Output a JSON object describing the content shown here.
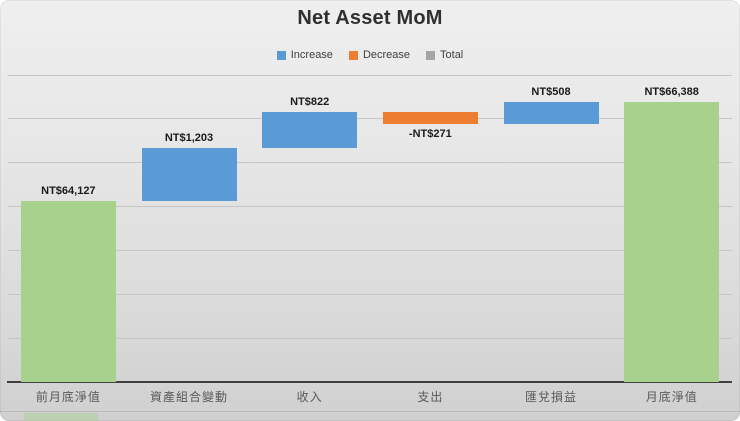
{
  "chart": {
    "title": "Net Asset MoM",
    "legend": {
      "position": "top",
      "items": [
        {
          "label": "Increase",
          "color": "#5B9BD5"
        },
        {
          "label": "Decrease",
          "color": "#ED7D31"
        },
        {
          "label": "Total",
          "color": "#A5A5A5"
        }
      ]
    },
    "colors": {
      "increase_bar": "#5B9BD5",
      "decrease_bar": "#ED7D31",
      "total_bar": "#A9D18E",
      "gridline": "#c6c6c6",
      "axis_line": "#404040",
      "title_text": "#2f2f2f",
      "category_text": "#595959",
      "label_text": "#1b1b1b"
    }
  },
  "chart_data": {
    "type": "bar",
    "subtype": "waterfall",
    "title": "Net Asset MoM",
    "currency": "NT$",
    "categories": [
      "前月底淨值",
      "資產組合變動",
      "收入",
      "支出",
      "匯兌損益",
      "月底淨值"
    ],
    "values": [
      64127,
      1203,
      822,
      -271,
      508,
      66388
    ],
    "items": [
      {
        "category": "前月底淨值",
        "value": 64127,
        "type": "total",
        "label": "NT$64,127"
      },
      {
        "category": "資產組合變動",
        "value": 1203,
        "type": "increase",
        "label": "NT$1,203"
      },
      {
        "category": "收入",
        "value": 822,
        "type": "increase",
        "label": "NT$822"
      },
      {
        "category": "支出",
        "value": -271,
        "type": "decrease",
        "label": "-NT$271"
      },
      {
        "category": "匯兌損益",
        "value": 508,
        "type": "increase",
        "label": "NT$508"
      },
      {
        "category": "月底淨值",
        "value": 66388,
        "type": "total",
        "label": "NT$66,388"
      }
    ],
    "xlabel": "",
    "ylabel": "",
    "ylim": [
      60000,
      67000
    ],
    "y_major_unit": 1000,
    "y_axis_labels_visible": false,
    "grid": true,
    "legend_position": "top"
  }
}
